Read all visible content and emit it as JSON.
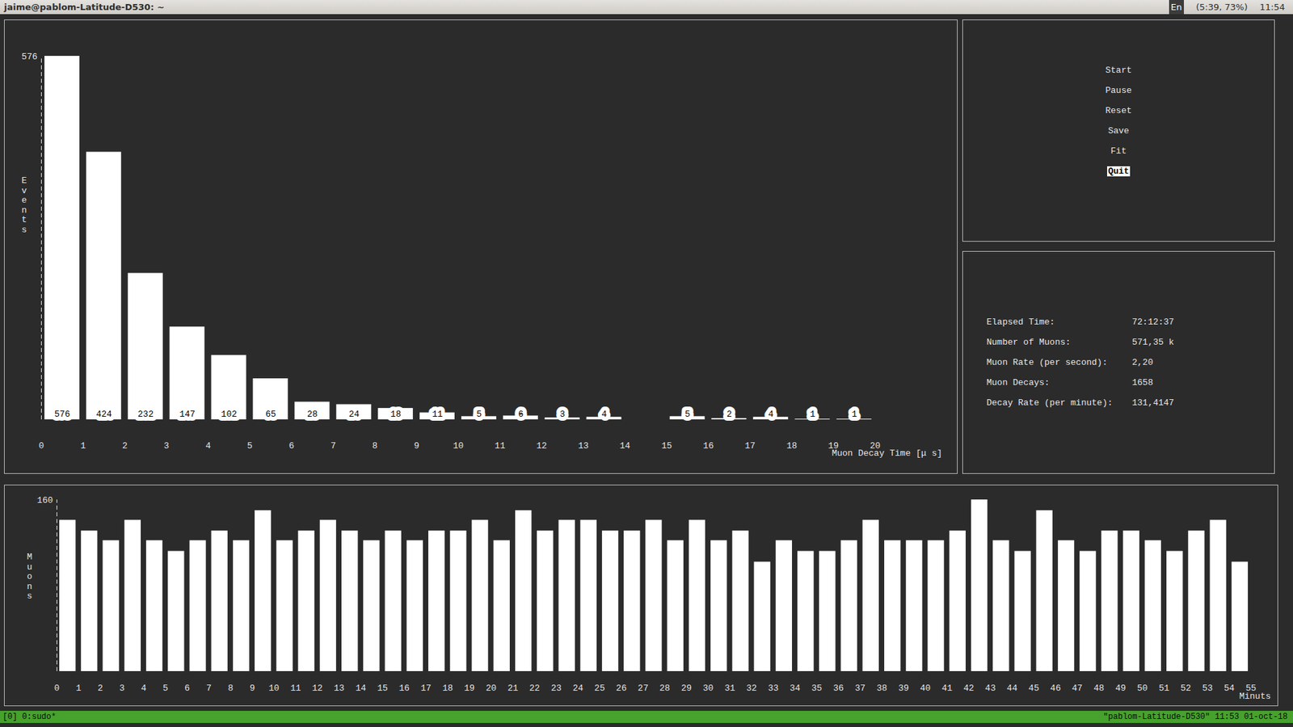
{
  "window": {
    "title": "jaime@pablom-Latitude-D530: ~",
    "indicators": [
      "En",
      "(5:39, 73%)",
      "11:54"
    ]
  },
  "menu": {
    "items": [
      "Start",
      "Pause",
      "Reset",
      "Save",
      "Fit",
      "Quit"
    ],
    "selected": "Quit"
  },
  "stats": {
    "rows": [
      [
        "Elapsed Time:",
        "72:12:37"
      ],
      [
        "Number of Muons:",
        "571,35 k"
      ],
      [
        "Muon Rate (per second):",
        "2,20"
      ],
      [
        "Muon Decays:",
        "1658"
      ],
      [
        "Decay Rate (per minute):",
        "131,4147"
      ]
    ]
  },
  "status_bar": {
    "left": "[0] 0:sudo*",
    "right": "\"pablom-Latitude-D530\" 11:53 01-oct-18"
  },
  "chart_data": [
    {
      "type": "histogram",
      "x_label": "Muon Decay Time [μ s]",
      "y_label": "Events",
      "bins": [
        0,
        1,
        2,
        3,
        4,
        5,
        6,
        7,
        8,
        9,
        10,
        11,
        12,
        13,
        14,
        15,
        16,
        17,
        18,
        19,
        20
      ],
      "values": [
        576,
        424,
        232,
        147,
        102,
        65,
        28,
        24,
        18,
        11,
        5,
        6,
        3,
        4,
        0,
        5,
        2,
        4,
        1,
        1
      ],
      "xlim": [
        0,
        20
      ],
      "xticks": [
        0,
        1,
        2,
        3,
        4,
        5,
        6,
        7,
        8,
        9,
        10,
        11,
        12,
        13,
        14,
        15,
        16,
        17,
        18,
        19,
        20
      ],
      "ylim": [
        0,
        576
      ],
      "yticks": [
        576
      ],
      "color": "#ffffff",
      "data_labels": true
    },
    {
      "type": "histogram",
      "x_label": "Minuts",
      "y_label": "Muons",
      "bins": [
        0,
        1,
        2,
        3,
        4,
        5,
        6,
        7,
        8,
        9,
        10,
        11,
        12,
        13,
        14,
        15,
        16,
        17,
        18,
        19,
        20,
        21,
        22,
        23,
        24,
        25,
        26,
        27,
        28,
        29,
        30,
        31,
        32,
        33,
        34,
        35,
        36,
        37,
        38,
        39,
        40,
        41,
        42,
        43,
        44,
        45,
        46,
        47,
        48,
        49,
        50,
        51,
        52,
        53,
        54,
        55
      ],
      "values": [
        141,
        131,
        122,
        141,
        122,
        112,
        122,
        131,
        122,
        150,
        122,
        131,
        141,
        131,
        122,
        131,
        122,
        131,
        131,
        141,
        122,
        150,
        131,
        141,
        141,
        131,
        131,
        141,
        122,
        141,
        122,
        131,
        102,
        122,
        112,
        112,
        122,
        141,
        122,
        122,
        122,
        131,
        160,
        122,
        112,
        150,
        122,
        112,
        131,
        131,
        122,
        112,
        131,
        141,
        102
      ],
      "xlim": [
        0,
        55
      ],
      "xticks": [
        0,
        1,
        2,
        3,
        4,
        5,
        6,
        7,
        8,
        9,
        10,
        11,
        12,
        13,
        14,
        15,
        16,
        17,
        18,
        19,
        20,
        21,
        22,
        23,
        24,
        25,
        26,
        27,
        28,
        29,
        30,
        31,
        32,
        33,
        34,
        35,
        36,
        37,
        38,
        39,
        40,
        41,
        42,
        43,
        44,
        45,
        46,
        47,
        48,
        49,
        50,
        51,
        52,
        53,
        54,
        55
      ],
      "ylim": [
        0,
        160
      ],
      "yticks": [
        160
      ],
      "color": "#ffffff",
      "data_labels": false
    }
  ]
}
